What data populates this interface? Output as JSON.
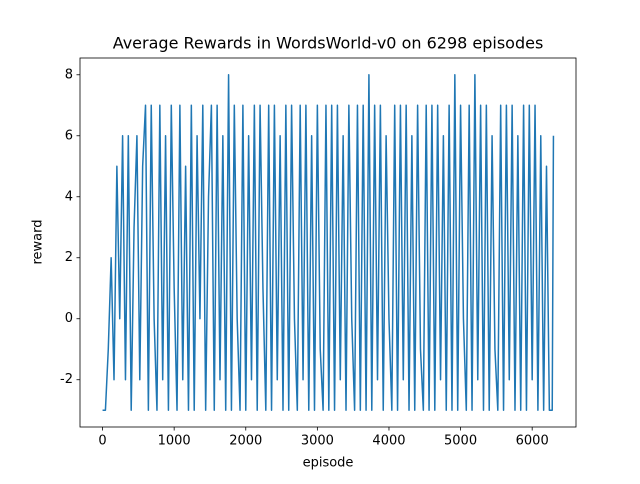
{
  "chart_data": {
    "type": "line",
    "title": "Average Rewards in WordsWorld-v0 on 6298 episodes",
    "x_label": "episode",
    "y_label": "reward",
    "x": [
      0,
      40,
      80,
      120,
      160,
      200,
      240,
      280,
      320,
      360,
      400,
      440,
      480,
      520,
      560,
      600,
      640,
      680,
      720,
      760,
      800,
      840,
      880,
      920,
      960,
      1000,
      1040,
      1080,
      1120,
      1160,
      1200,
      1240,
      1280,
      1320,
      1360,
      1400,
      1440,
      1480,
      1520,
      1560,
      1600,
      1640,
      1680,
      1720,
      1760,
      1800,
      1840,
      1880,
      1920,
      1960,
      2000,
      2040,
      2080,
      2120,
      2160,
      2200,
      2240,
      2280,
      2320,
      2360,
      2400,
      2440,
      2480,
      2520,
      2560,
      2600,
      2640,
      2680,
      2720,
      2760,
      2800,
      2840,
      2880,
      2920,
      2960,
      3000,
      3040,
      3080,
      3120,
      3160,
      3200,
      3240,
      3280,
      3320,
      3360,
      3400,
      3440,
      3480,
      3520,
      3560,
      3600,
      3640,
      3680,
      3720,
      3760,
      3800,
      3840,
      3880,
      3920,
      3960,
      4000,
      4040,
      4080,
      4120,
      4160,
      4200,
      4240,
      4280,
      4320,
      4360,
      4400,
      4440,
      4480,
      4520,
      4560,
      4600,
      4640,
      4680,
      4720,
      4760,
      4800,
      4840,
      4880,
      4920,
      4960,
      5000,
      5040,
      5080,
      5120,
      5160,
      5200,
      5240,
      5280,
      5320,
      5360,
      5400,
      5440,
      5480,
      5520,
      5560,
      5600,
      5640,
      5680,
      5720,
      5760,
      5800,
      5840,
      5880,
      5920,
      5960,
      6000,
      6040,
      6080,
      6120,
      6160,
      6200,
      6240,
      6280,
      6297
    ],
    "series": [
      {
        "name": "reward",
        "color": "#1f77b4",
        "values": [
          -3,
          -3,
          -1,
          2,
          -2,
          5,
          0,
          6,
          -2,
          6,
          -3,
          3,
          6,
          -2,
          5,
          7,
          -3,
          7,
          0,
          -3,
          7,
          -2,
          6,
          -3,
          7,
          1,
          -3,
          7,
          -2,
          5,
          -3,
          7,
          -3,
          6,
          0,
          7,
          -3,
          4,
          7,
          -3,
          7,
          -2,
          6,
          -3,
          8,
          -3,
          7,
          0,
          -3,
          7,
          -3,
          6,
          -2,
          7,
          -3,
          7,
          1,
          -3,
          7,
          -3,
          7,
          -2,
          6,
          -3,
          7,
          -3,
          7,
          0,
          -3,
          7,
          -2,
          7,
          -3,
          6,
          -3,
          7,
          -1,
          -3,
          7,
          -3,
          7,
          -3,
          7,
          -2,
          6,
          -3,
          7,
          0,
          -3,
          7,
          -3,
          7,
          -3,
          8,
          -3,
          7,
          -2,
          7,
          -3,
          6,
          0,
          -3,
          7,
          -3,
          7,
          -2,
          7,
          -3,
          6,
          -3,
          7,
          -1,
          -3,
          7,
          -3,
          7,
          -3,
          7,
          -2,
          6,
          -3,
          7,
          -3,
          8,
          -3,
          7,
          0,
          -3,
          7,
          -3,
          8,
          -2,
          7,
          -3,
          7,
          -3,
          6,
          -1,
          -3,
          7,
          -3,
          7,
          -2,
          7,
          -3,
          6,
          -3,
          7,
          -3,
          7,
          -2,
          7,
          -3,
          6,
          -3,
          5,
          -3,
          -3,
          6
        ]
      }
    ],
    "xlim": [
      -315,
      6612
    ],
    "ylim": [
      -3.55,
      8.55
    ],
    "xticks": [
      0,
      1000,
      2000,
      3000,
      4000,
      5000,
      6000
    ],
    "yticks": [
      -2,
      0,
      2,
      4,
      6,
      8
    ]
  }
}
